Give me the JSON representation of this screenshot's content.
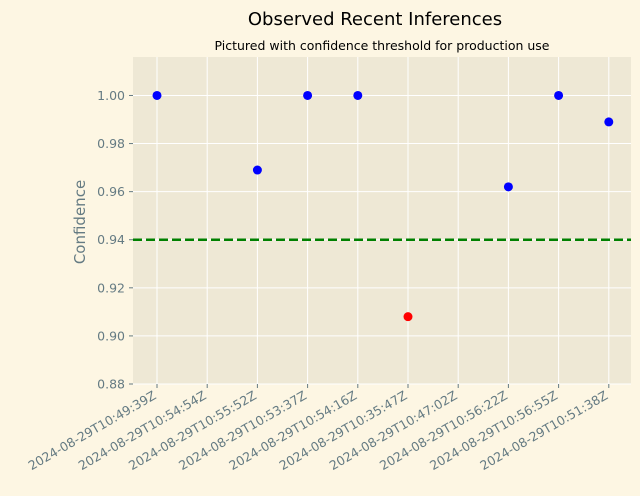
{
  "chart_data": {
    "type": "scatter",
    "title": "Observed Recent Inferences",
    "subtitle": "Pictured with confidence threshold for production use",
    "xlabel": "",
    "ylabel": "Confidence",
    "categories": [
      "2024-08-29T10:49:39Z",
      "2024-08-29T10:54:54Z",
      "2024-08-29T10:55:52Z",
      "2024-08-29T10:53:37Z",
      "2024-08-29T10:54:16Z",
      "2024-08-29T10:35:47Z",
      "2024-08-29T10:47:02Z",
      "2024-08-29T10:56:22Z",
      "2024-08-29T10:56:55Z",
      "2024-08-29T10:51:38Z"
    ],
    "values": [
      1.0,
      null,
      0.969,
      1.0,
      1.0,
      0.908,
      null,
      0.962,
      1.0,
      0.989
    ],
    "threshold": 0.94,
    "ylim": [
      0.88,
      1.016
    ],
    "yticks": [
      "0.88",
      "0.90",
      "0.92",
      "0.94",
      "0.96",
      "0.98",
      "1.00"
    ],
    "grid": true,
    "colors": {
      "above_threshold": "#0000ff",
      "below_threshold": "#ff0000",
      "threshold_line": "#008000",
      "plot_background": "#eee8d5",
      "figure_background": "#fdf6e3",
      "grid": "#ffffff",
      "axis_text": "#657b83"
    }
  }
}
